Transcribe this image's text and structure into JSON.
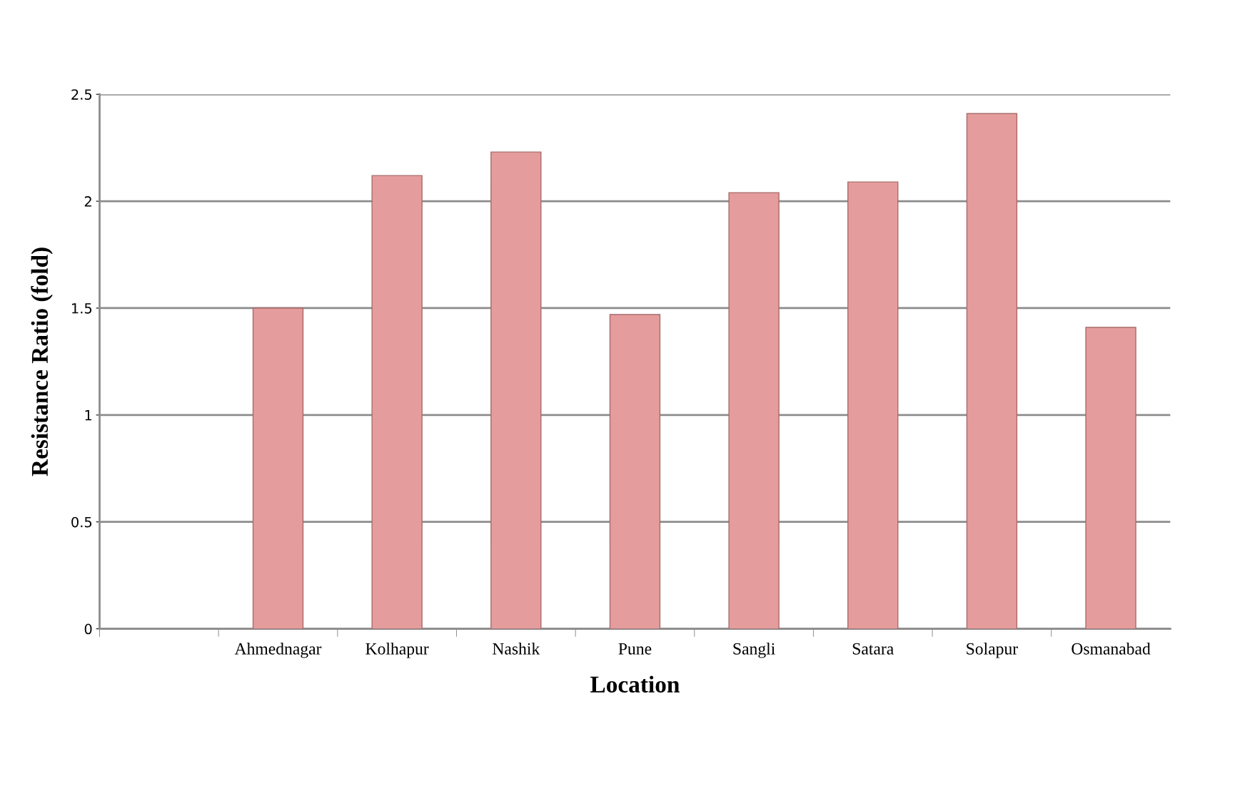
{
  "chart_data": {
    "type": "bar",
    "xlabel": "Location",
    "ylabel": "Resistance Ratio (fold)",
    "categories": [
      null,
      "Ahmednagar",
      "Kolhapur",
      "Nashik",
      "Pune",
      "Sangli",
      "Satara",
      "Solapur",
      "Osmanabad"
    ],
    "values": [
      null,
      1.5,
      2.12,
      2.23,
      1.47,
      2.04,
      2.09,
      2.41,
      1.41
    ],
    "color": "#e59c9c",
    "ylim": [
      0,
      2.5
    ],
    "yticks": [
      0,
      0.5,
      1,
      1.5,
      2,
      2.5
    ],
    "grid": "y"
  }
}
